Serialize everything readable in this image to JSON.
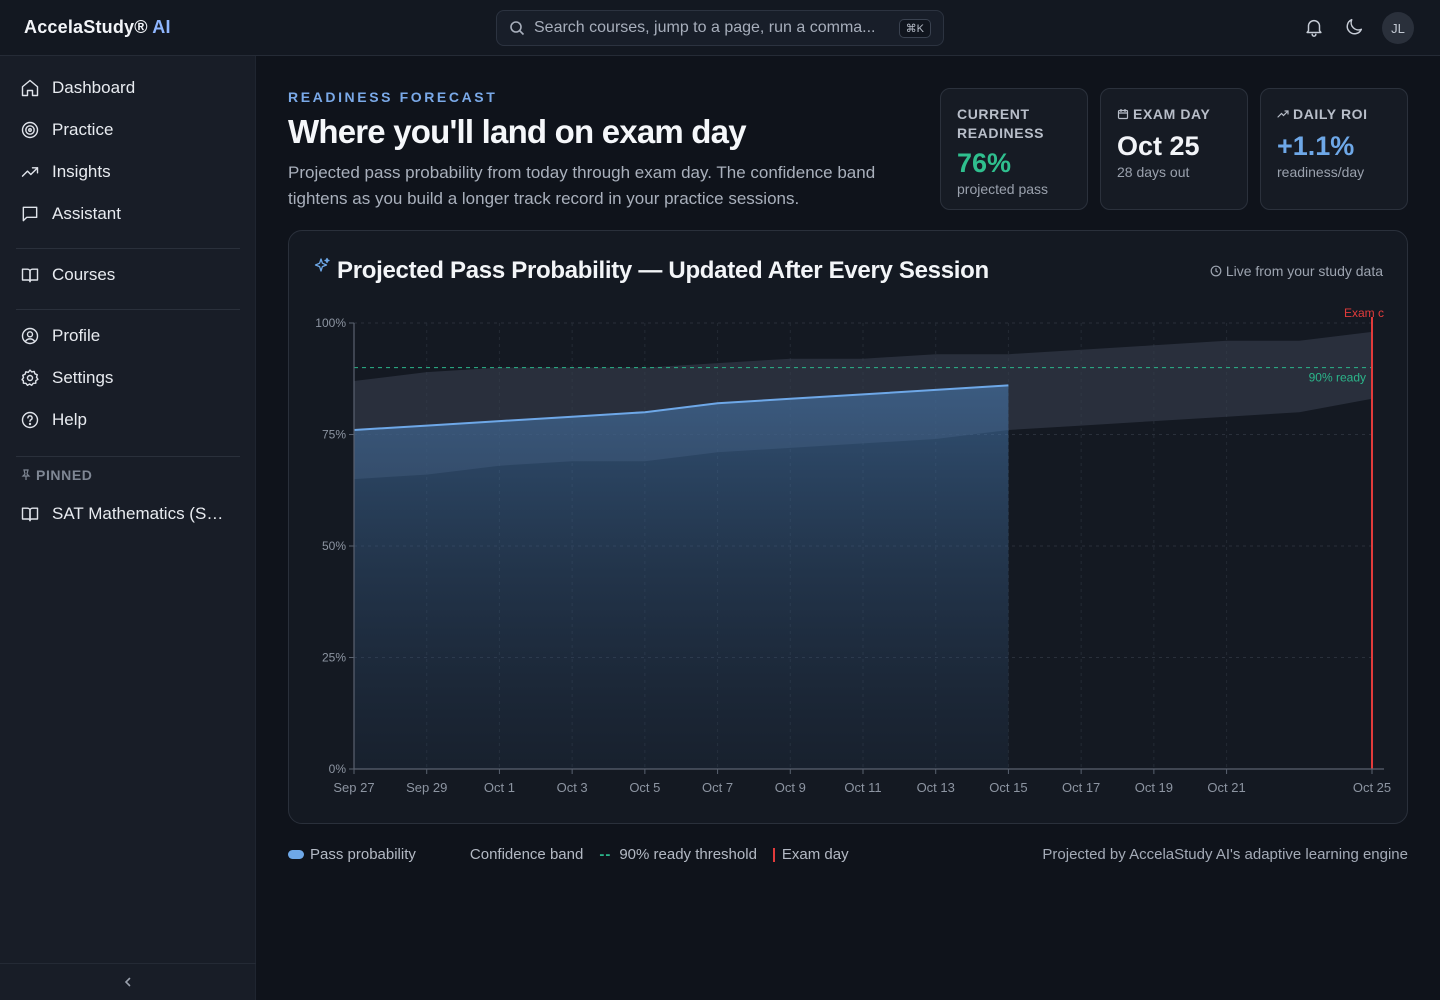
{
  "app": {
    "brand": "AccelaStudy®",
    "brand_ai": "AI",
    "search_placeholder": "Search courses, jump to a page, run a comma...",
    "search_shortcut": "⌘K",
    "avatar_initials": "JL"
  },
  "sidebar": {
    "items": [
      {
        "label": "Dashboard",
        "icon": "home-icon"
      },
      {
        "label": "Practice",
        "icon": "target-icon"
      },
      {
        "label": "Insights",
        "icon": "trending-up-icon"
      },
      {
        "label": "Assistant",
        "icon": "chat-icon"
      },
      {
        "label": "Courses",
        "icon": "book-icon"
      },
      {
        "label": "Profile",
        "icon": "user-circle-icon"
      },
      {
        "label": "Settings",
        "icon": "gear-icon"
      },
      {
        "label": "Help",
        "icon": "help-circle-icon"
      }
    ],
    "pinned_label": "PINNED",
    "pinned_items": [
      {
        "label": "SAT Mathematics (SAT...",
        "icon": "book-icon"
      }
    ],
    "collapse_icon": "chevron-left-icon"
  },
  "header": {
    "eyebrow": "READINESS FORECAST",
    "title": "Where you'll land on exam day",
    "description": "Projected pass probability from today through exam day. The confidence band tightens as you build a longer track record in your practice sessions."
  },
  "stats": [
    {
      "label": "CURRENT READINESS",
      "value": "76%",
      "sub": "projected pass",
      "color": "#2fbf8e"
    },
    {
      "label": "EXAM DAY",
      "value": "Oct 25",
      "sub": "28 days out",
      "color": "#f2f4f8",
      "icon": "calendar-icon"
    },
    {
      "label": "DAILY ROI",
      "value": "+1.1%",
      "sub": "readiness/day",
      "color": "#6ea8e8",
      "icon": "trending-up-icon"
    }
  ],
  "chart": {
    "title": "Projected Pass Probability — Updated After Every Session",
    "live_label": "Live from your study data",
    "title_icon": "sparkle-icon",
    "live_icon": "clock-icon"
  },
  "chart_data": {
    "type": "area",
    "x_tick_labels": [
      "Sep 27",
      "Sep 29",
      "Oct 1",
      "Oct 3",
      "Oct 5",
      "Oct 7",
      "Oct 9",
      "Oct 11",
      "Oct 13",
      "Oct 15",
      "Oct 17",
      "Oct 19",
      "Oct 21",
      "Oct 25"
    ],
    "y_tick_labels": [
      "0%",
      "25%",
      "50%",
      "75%",
      "100%"
    ],
    "ylim": [
      0,
      100
    ],
    "x_start": "2024-09-27",
    "x_end": "2024-10-25",
    "series": [
      {
        "name": "Pass probability",
        "color": "#6ea8e8",
        "x": [
          "Sep 27",
          "Sep 29",
          "Oct 1",
          "Oct 3",
          "Oct 5",
          "Oct 7",
          "Oct 9",
          "Oct 11",
          "Oct 13",
          "Oct 15"
        ],
        "values": [
          76,
          77,
          78,
          79,
          80,
          82,
          83,
          84,
          85,
          86
        ]
      }
    ],
    "confidence_band": {
      "name": "Confidence band",
      "x": [
        "Sep 27",
        "Sep 29",
        "Oct 1",
        "Oct 3",
        "Oct 5",
        "Oct 7",
        "Oct 9",
        "Oct 11",
        "Oct 13",
        "Oct 15",
        "Oct 17",
        "Oct 19",
        "Oct 21",
        "Oct 23",
        "Oct 25"
      ],
      "lower": [
        65,
        66,
        68,
        69,
        69,
        71,
        72,
        73,
        74,
        76,
        77,
        78,
        79,
        80,
        83
      ],
      "upper": [
        87,
        89,
        90,
        90,
        90,
        91,
        92,
        92,
        93,
        93,
        94,
        95,
        96,
        96,
        98
      ]
    },
    "threshold": {
      "name": "90% ready threshold",
      "value": 90,
      "label": "90% ready",
      "color": "#2bb58a"
    },
    "exam_marker": {
      "name": "Exam day",
      "x": "Oct 25",
      "label": "Exam c",
      "color": "#e23b3b"
    },
    "grid": true
  },
  "legend": [
    {
      "label": "Pass probability"
    },
    {
      "label": "Confidence band"
    },
    {
      "label": "90% ready threshold",
      "dash": "--"
    },
    {
      "label": "Exam day"
    }
  ],
  "footer_note": "Projected by AccelaStudy AI's adaptive learning engine"
}
